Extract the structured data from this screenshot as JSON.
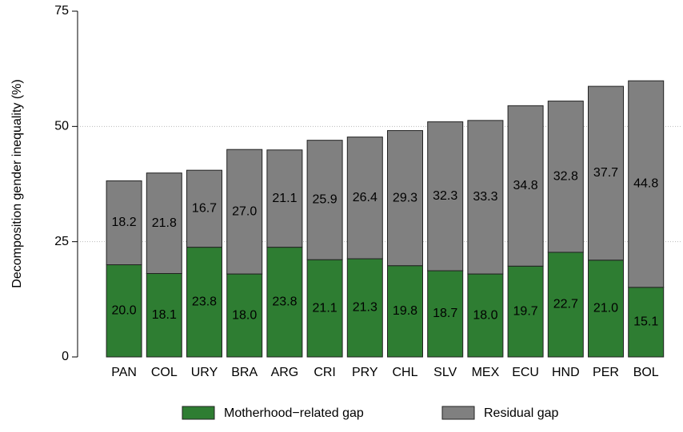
{
  "chart_data": {
    "type": "stacked_bar",
    "ylabel": "Decomposition gender inequality (%)",
    "categories": [
      "PAN",
      "COL",
      "URY",
      "BRA",
      "ARG",
      "CRI",
      "PRY",
      "CHL",
      "SLV",
      "MEX",
      "ECU",
      "HND",
      "PER",
      "BOL"
    ],
    "series": [
      {
        "name": "Motherhood−related gap",
        "color": "#2e7d32",
        "values": [
          20.0,
          18.1,
          23.8,
          18.0,
          23.8,
          21.1,
          21.3,
          19.8,
          18.7,
          18.0,
          19.7,
          22.7,
          21.0,
          15.1
        ],
        "value_labels": [
          "20.0",
          "18.1",
          "23.8",
          "18.0",
          "23.8",
          "21.1",
          "21.3",
          "19.8",
          "18.7",
          "18.0",
          "19.7",
          "22.7",
          "21.0",
          "15.1"
        ]
      },
      {
        "name": "Residual gap",
        "color": "#808080",
        "values": [
          18.2,
          21.8,
          16.7,
          27.0,
          21.1,
          25.9,
          26.4,
          29.3,
          32.3,
          33.3,
          34.8,
          32.8,
          37.7,
          44.8
        ],
        "value_labels": [
          "18.2",
          "21.8",
          "16.7",
          "27.0",
          "21.1",
          "25.9",
          "26.4",
          "29.3",
          "32.3",
          "33.3",
          "34.8",
          "32.8",
          "37.7",
          "44.8"
        ]
      }
    ],
    "ylim": [
      0,
      75
    ],
    "yticks": [
      0,
      25,
      50,
      75
    ],
    "grid": true
  }
}
